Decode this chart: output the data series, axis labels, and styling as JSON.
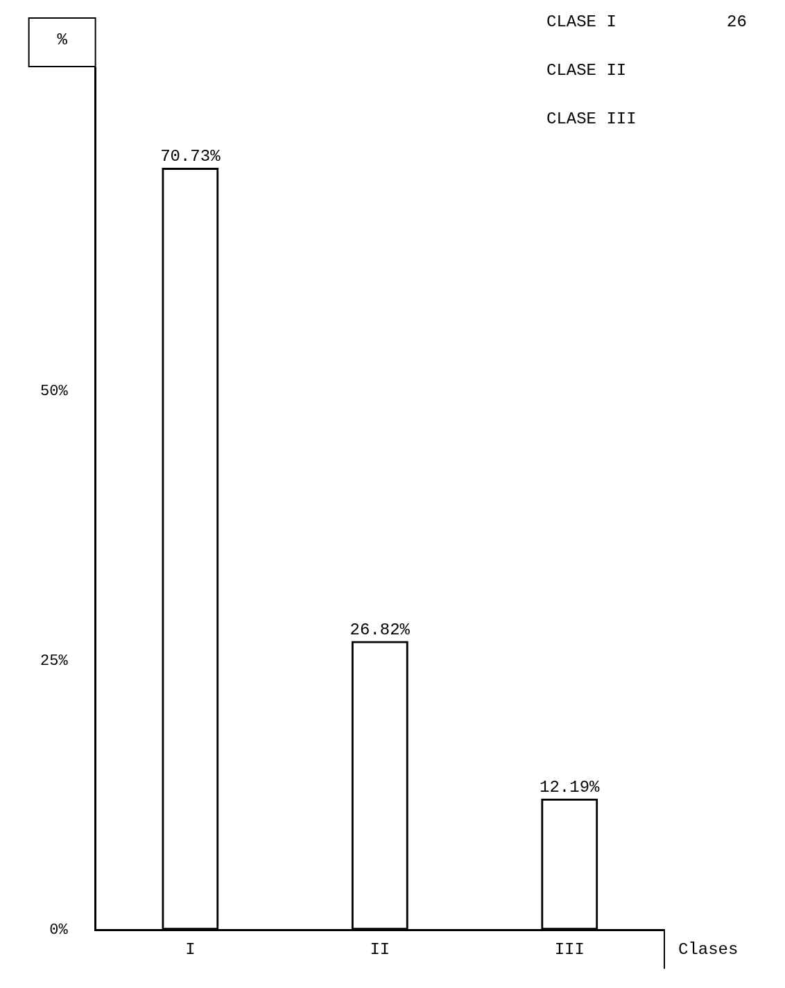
{
  "chart_data": {
    "type": "bar",
    "xlabel": "Clases",
    "ylabel": "%",
    "categories": [
      "I",
      "II",
      "III"
    ],
    "values": [
      70.73,
      26.82,
      12.19
    ],
    "value_labels": [
      "70.73%",
      "26.82%",
      "12.19%"
    ],
    "color": "#000000",
    "ylim": [
      0,
      80
    ],
    "yticks": [
      {
        "value": 0,
        "label": "0%"
      },
      {
        "value": 25,
        "label": "25%"
      },
      {
        "value": 50,
        "label": "50%"
      }
    ],
    "grid": false,
    "legend": false,
    "annotations": [
      "CLASE I",
      "CLASE II",
      "CLASE III",
      "26"
    ]
  }
}
